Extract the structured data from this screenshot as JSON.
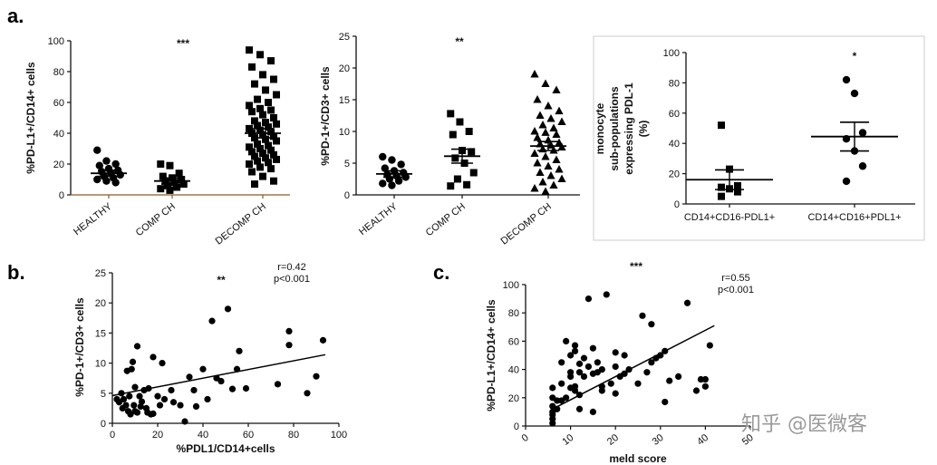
{
  "watermark": "知乎 @医微客",
  "chart_data": [
    {
      "id": "a1",
      "panel_label": "a.",
      "type": "scatter",
      "ylabel": "%PD-L1+/CD14+ cells",
      "ylim": [
        0,
        100
      ],
      "yticks": [
        0,
        20,
        40,
        60,
        80,
        100
      ],
      "categories": [
        "HEALTHY",
        "COMP CH",
        "DECOMP CH"
      ],
      "significance": "***",
      "marker": [
        "circle",
        "square",
        "square"
      ],
      "groups": [
        {
          "name": "HEALTHY",
          "mean": 14,
          "sem": 2,
          "values": [
            29,
            22,
            20,
            19,
            17,
            16,
            15,
            14,
            13,
            12,
            11,
            10,
            9,
            8
          ]
        },
        {
          "name": "COMP CH",
          "mean": 9,
          "sem": 2,
          "values": [
            20,
            19,
            14,
            12,
            11,
            10,
            9,
            8,
            7,
            6,
            5,
            4,
            3
          ]
        },
        {
          "name": "DECOMP CH",
          "mean": 40,
          "sem": 3,
          "values": [
            94,
            91,
            87,
            83,
            78,
            75,
            72,
            68,
            65,
            62,
            60,
            58,
            56,
            55,
            54,
            52,
            50,
            48,
            47,
            46,
            45,
            44,
            43,
            42,
            41,
            40,
            39,
            38,
            37,
            36,
            35,
            33,
            32,
            31,
            30,
            29,
            28,
            27,
            26,
            25,
            24,
            23,
            22,
            21,
            20,
            18,
            17,
            15,
            12,
            9,
            7
          ]
        }
      ]
    },
    {
      "id": "a2",
      "type": "scatter",
      "ylabel": "%PD-1+/CD3+ cells",
      "ylim": [
        0,
        25
      ],
      "yticks": [
        0,
        5,
        10,
        15,
        20,
        25
      ],
      "categories": [
        "HEALTHY",
        "COMP CH",
        "DECOMP CH"
      ],
      "significance": "**",
      "marker": [
        "circle",
        "square",
        "triangle"
      ],
      "groups": [
        {
          "name": "HEALTHY",
          "mean": 3.3,
          "sem": 0.5,
          "values": [
            6,
            5.5,
            4.8,
            4.2,
            3.8,
            3.5,
            3.2,
            3,
            2.8,
            2.5,
            2.2,
            1.8,
            1.5
          ]
        },
        {
          "name": "COMP CH",
          "mean": 6.1,
          "sem": 1.1,
          "values": [
            12.8,
            11.5,
            10,
            9.5,
            7,
            6.8,
            5.8,
            5,
            3.5,
            2.5,
            1.6,
            1.4
          ]
        },
        {
          "name": "DECOMP CH",
          "mean": 7.7,
          "sem": 0.7,
          "values": [
            19,
            17.5,
            16.5,
            15,
            14,
            13.2,
            12.5,
            12,
            11.5,
            11,
            10.5,
            10,
            9.8,
            9.5,
            9,
            8.6,
            8.2,
            8,
            7.8,
            7.5,
            7.2,
            7,
            6.5,
            6,
            5.5,
            5,
            4.5,
            4,
            3.5,
            3,
            2.5,
            2,
            1.5,
            1,
            0.5
          ]
        }
      ]
    },
    {
      "id": "a3",
      "type": "scatter",
      "ylabel_lines": [
        "monocyte",
        "sub-populations",
        "expressing PDL-1",
        "(%)"
      ],
      "ylim": [
        0,
        100
      ],
      "yticks": [
        0,
        20,
        40,
        60,
        80,
        100
      ],
      "categories": [
        "CD14+CD16-PDL1+",
        "CD14+CD16+PDL1+"
      ],
      "significance": "*",
      "marker": [
        "square",
        "circle"
      ],
      "groups": [
        {
          "name": "CD14+CD16-PDL1+",
          "mean": 16,
          "sem": 6.5,
          "values": [
            52,
            23,
            12,
            11,
            10,
            8,
            5
          ]
        },
        {
          "name": "CD14+CD16+PDL1+",
          "mean": 44.5,
          "sem": 9.5,
          "values": [
            82,
            73,
            47,
            43,
            35,
            25,
            15
          ]
        }
      ]
    },
    {
      "id": "b",
      "panel_label": "b.",
      "type": "scatter",
      "xlabel": "%PDL1/CD14+cells",
      "ylabel": "%PD-1+/CD3+ cells",
      "xlim": [
        0,
        100
      ],
      "ylim": [
        0,
        25
      ],
      "xticks": [
        0,
        20,
        40,
        60,
        80,
        100
      ],
      "yticks": [
        0,
        5,
        10,
        15,
        20,
        25
      ],
      "significance": "**",
      "stats": [
        "r=0.42",
        "p<0.001"
      ],
      "fit": {
        "x": [
          0,
          94
        ],
        "y": [
          4.6,
          11.4
        ]
      },
      "points": [
        [
          2,
          4
        ],
        [
          3,
          3.5
        ],
        [
          4,
          5
        ],
        [
          4.5,
          2.5
        ],
        [
          5,
          4
        ],
        [
          6,
          3
        ],
        [
          6.5,
          8.7
        ],
        [
          7,
          2
        ],
        [
          7.5,
          4.5
        ],
        [
          8,
          1.5
        ],
        [
          8.5,
          9
        ],
        [
          9,
          10.2
        ],
        [
          9.5,
          3
        ],
        [
          10,
          2
        ],
        [
          10,
          6
        ],
        [
          11,
          12.8
        ],
        [
          11,
          1.8
        ],
        [
          12,
          4.5
        ],
        [
          12.5,
          2.8
        ],
        [
          13,
          3.6
        ],
        [
          14,
          5.5
        ],
        [
          15,
          2.5
        ],
        [
          15.5,
          1.8
        ],
        [
          16,
          5.8
        ],
        [
          17,
          1.5
        ],
        [
          18,
          1.6
        ],
        [
          18,
          11
        ],
        [
          20,
          4.5
        ],
        [
          21,
          3
        ],
        [
          22,
          10
        ],
        [
          23,
          4
        ],
        [
          26,
          5.5
        ],
        [
          27,
          3.5
        ],
        [
          30,
          3
        ],
        [
          32,
          0.3
        ],
        [
          34,
          7.7
        ],
        [
          36,
          5.5
        ],
        [
          37,
          2.8
        ],
        [
          40,
          9
        ],
        [
          42,
          4
        ],
        [
          44,
          17
        ],
        [
          46,
          7.5
        ],
        [
          48,
          7
        ],
        [
          51,
          19
        ],
        [
          53,
          5.7
        ],
        [
          55,
          9
        ],
        [
          56,
          12
        ],
        [
          59,
          5.8
        ],
        [
          73,
          6.5
        ],
        [
          78,
          15.3
        ],
        [
          78,
          13
        ],
        [
          86,
          5
        ],
        [
          90,
          7.8
        ],
        [
          93,
          13.8
        ]
      ]
    },
    {
      "id": "c",
      "panel_label": "c.",
      "type": "scatter",
      "xlabel": "meld score",
      "ylabel": "%PD-L1+/CD14+ cells",
      "xlim": [
        0,
        50
      ],
      "ylim": [
        0,
        100
      ],
      "xticks": [
        0,
        10,
        20,
        30,
        40,
        50
      ],
      "yticks": [
        0,
        20,
        40,
        60,
        80,
        100
      ],
      "significance": "***",
      "stats": [
        "r=0.55",
        "p<0.001"
      ],
      "fit": {
        "x": [
          6,
          42
        ],
        "y": [
          12,
          71
        ]
      },
      "points": [
        [
          6,
          2
        ],
        [
          6,
          5
        ],
        [
          6,
          8
        ],
        [
          6,
          10
        ],
        [
          6,
          14
        ],
        [
          6,
          20
        ],
        [
          6,
          27
        ],
        [
          7,
          12
        ],
        [
          7,
          18
        ],
        [
          8,
          18
        ],
        [
          8,
          30
        ],
        [
          8,
          45
        ],
        [
          9,
          20
        ],
        [
          9,
          60
        ],
        [
          10,
          27
        ],
        [
          10,
          35
        ],
        [
          10,
          38
        ],
        [
          10,
          50
        ],
        [
          11,
          28
        ],
        [
          11,
          25
        ],
        [
          11,
          53
        ],
        [
          11,
          57
        ],
        [
          12,
          12
        ],
        [
          12,
          22
        ],
        [
          12,
          38
        ],
        [
          12,
          44
        ],
        [
          13,
          35
        ],
        [
          13,
          48
        ],
        [
          14,
          42
        ],
        [
          14,
          90
        ],
        [
          15,
          10
        ],
        [
          15,
          37
        ],
        [
          15,
          55
        ],
        [
          16,
          38
        ],
        [
          16,
          45
        ],
        [
          17,
          25
        ],
        [
          17,
          28
        ],
        [
          17,
          40
        ],
        [
          18,
          93
        ],
        [
          19,
          30
        ],
        [
          20,
          23
        ],
        [
          20,
          52
        ],
        [
          20,
          42
        ],
        [
          21,
          35
        ],
        [
          22,
          50
        ],
        [
          22,
          37
        ],
        [
          23,
          40
        ],
        [
          25,
          30
        ],
        [
          26,
          78
        ],
        [
          27,
          38
        ],
        [
          28,
          72
        ],
        [
          28,
          45
        ],
        [
          29,
          48
        ],
        [
          30,
          50
        ],
        [
          31,
          17
        ],
        [
          31,
          53
        ],
        [
          32,
          32
        ],
        [
          34,
          35
        ],
        [
          36,
          87
        ],
        [
          38,
          25
        ],
        [
          39,
          33
        ],
        [
          40,
          28
        ],
        [
          40,
          33
        ],
        [
          41,
          57
        ]
      ]
    }
  ]
}
